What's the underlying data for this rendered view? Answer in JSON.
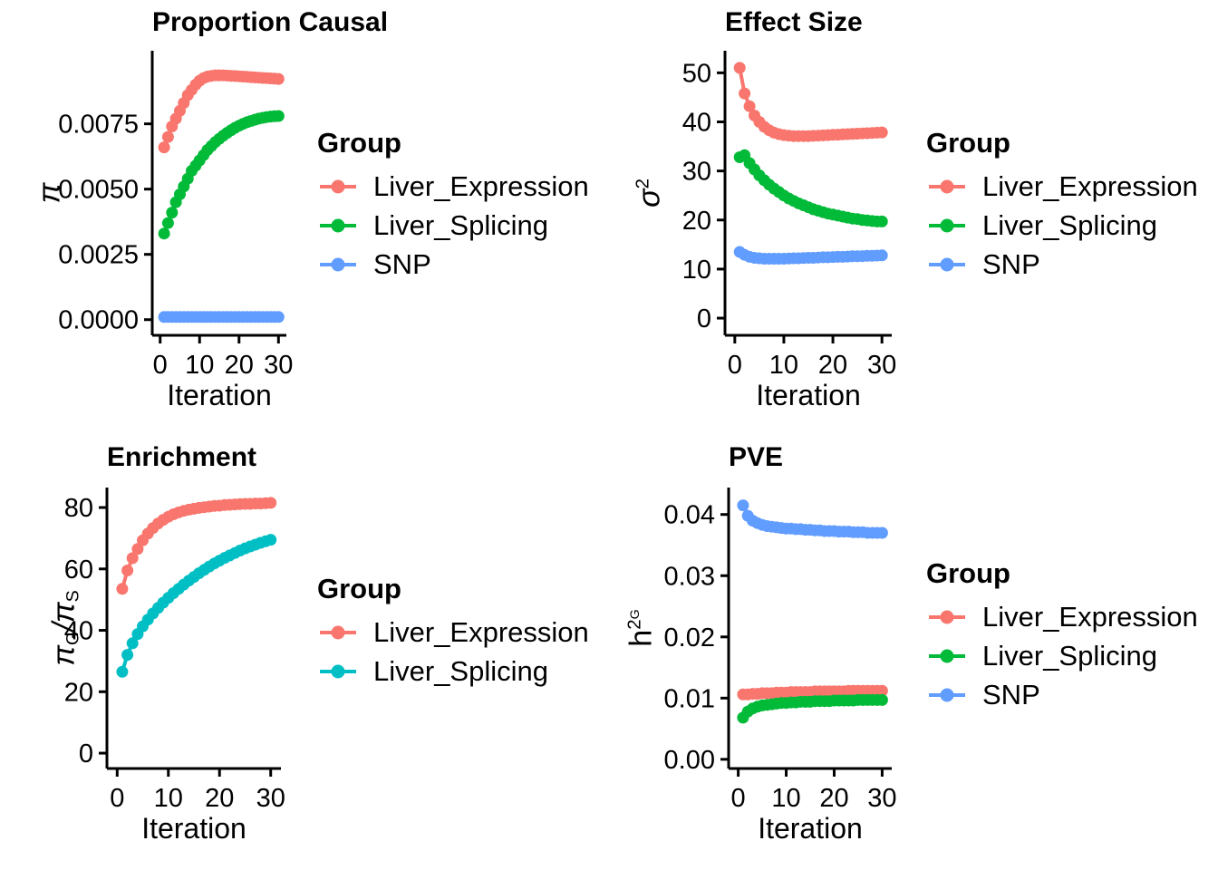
{
  "chart_data": [
    {
      "id": "proportion-causal",
      "type": "line",
      "title": "Proportion Causal",
      "xlabel": "Iteration",
      "ylabel": "π",
      "ylabel_parts": [
        {
          "t": "π",
          "s": "i"
        }
      ],
      "legend_title": "Group",
      "legend_position": "right",
      "xticks": [
        0,
        10,
        20,
        30
      ],
      "ytick_values": [
        0,
        0.0025,
        0.005,
        0.0075
      ],
      "ytick_labels": [
        "0.0000",
        "0.0025",
        "0.0050",
        "0.0075"
      ],
      "xlim": [
        -2,
        32
      ],
      "ylim": [
        -0.0006,
        0.0103
      ],
      "x": [
        1,
        2,
        3,
        4,
        5,
        6,
        7,
        8,
        9,
        10,
        11,
        12,
        13,
        14,
        15,
        16,
        17,
        18,
        19,
        20,
        21,
        22,
        23,
        24,
        25,
        26,
        27,
        28,
        29,
        30
      ],
      "series": [
        {
          "name": "Liver_Expression",
          "color": "#F8766D",
          "values": [
            0.0066,
            0.007,
            0.0074,
            0.0077,
            0.008,
            0.0083,
            0.0086,
            0.0088,
            0.009,
            0.00915,
            0.00925,
            0.00931,
            0.00934,
            0.00936,
            0.00936,
            0.00936,
            0.00935,
            0.00934,
            0.00933,
            0.00932,
            0.00931,
            0.0093,
            0.00929,
            0.00928,
            0.00927,
            0.00926,
            0.00925,
            0.00924,
            0.00923,
            0.00922
          ]
        },
        {
          "name": "Liver_Splicing",
          "color": "#00BA38",
          "values": [
            0.0033,
            0.0037,
            0.0041,
            0.0045,
            0.0048,
            0.0051,
            0.0054,
            0.0057,
            0.0059,
            0.0061,
            0.0063,
            0.0065,
            0.00665,
            0.0068,
            0.00693,
            0.00705,
            0.00716,
            0.00726,
            0.00735,
            0.00743,
            0.0075,
            0.00756,
            0.00761,
            0.00766,
            0.0077,
            0.00773,
            0.00776,
            0.00778,
            0.00779,
            0.0078
          ]
        },
        {
          "name": "SNP",
          "color": "#619CFF",
          "values": [
            0.0001,
            0.0001,
            0.0001,
            0.0001,
            0.0001,
            0.0001,
            0.0001,
            0.0001,
            0.0001,
            0.0001,
            0.0001,
            0.0001,
            0.0001,
            0.0001,
            0.0001,
            0.0001,
            0.0001,
            0.0001,
            0.0001,
            0.0001,
            0.0001,
            0.0001,
            0.0001,
            0.0001,
            0.0001,
            0.0001,
            0.0001,
            0.0001,
            0.0001,
            0.0001
          ]
        }
      ]
    },
    {
      "id": "effect-size",
      "type": "line",
      "title": "Effect Size",
      "xlabel": "Iteration",
      "ylabel": "σ²",
      "ylabel_parts": [
        {
          "t": "σ",
          "s": "i"
        },
        {
          "t": "2",
          "s": "sup"
        }
      ],
      "legend_title": "Group",
      "legend_position": "right",
      "xticks": [
        0,
        10,
        20,
        30
      ],
      "ytick_values": [
        0,
        10,
        20,
        30,
        40,
        50
      ],
      "ytick_labels": [
        "0",
        "10",
        "20",
        "30",
        "40",
        "50"
      ],
      "xlim": [
        -2,
        32
      ],
      "ylim": [
        -3.5,
        54.5
      ],
      "x": [
        1,
        2,
        3,
        4,
        5,
        6,
        7,
        8,
        9,
        10,
        11,
        12,
        13,
        14,
        15,
        16,
        17,
        18,
        19,
        20,
        21,
        22,
        23,
        24,
        25,
        26,
        27,
        28,
        29,
        30
      ],
      "series": [
        {
          "name": "Liver_Expression",
          "color": "#F8766D",
          "values": [
            51,
            45.8,
            43.2,
            41.3,
            40,
            39,
            38.3,
            37.8,
            37.5,
            37.3,
            37.2,
            37.1,
            37.1,
            37.1,
            37.1,
            37.15,
            37.2,
            37.25,
            37.3,
            37.35,
            37.4,
            37.45,
            37.5,
            37.55,
            37.6,
            37.65,
            37.7,
            37.75,
            37.8,
            37.85
          ]
        },
        {
          "name": "Liver_Splicing",
          "color": "#00BA38",
          "values": [
            32.8,
            33.2,
            31.6,
            30.3,
            29.1,
            28.1,
            27.2,
            26.4,
            25.7,
            25,
            24.4,
            23.9,
            23.4,
            23,
            22.6,
            22.2,
            21.9,
            21.6,
            21.3,
            21.1,
            20.9,
            20.7,
            20.5,
            20.3,
            20.2,
            20,
            19.9,
            19.8,
            19.7,
            19.7
          ]
        },
        {
          "name": "SNP",
          "color": "#619CFF",
          "values": [
            13.5,
            12.9,
            12.5,
            12.3,
            12.2,
            12.1,
            12.1,
            12.1,
            12.1,
            12.1,
            12.15,
            12.2,
            12.2,
            12.25,
            12.3,
            12.3,
            12.35,
            12.4,
            12.4,
            12.45,
            12.5,
            12.5,
            12.55,
            12.6,
            12.6,
            12.65,
            12.7,
            12.7,
            12.75,
            12.8
          ]
        }
      ]
    },
    {
      "id": "enrichment",
      "type": "line",
      "title": "Enrichment",
      "xlabel": "Iteration",
      "ylabel": "π_G/π_S",
      "ylabel_parts": [
        {
          "t": "π",
          "s": "i"
        },
        {
          "t": "G",
          "s": "sub"
        },
        {
          "t": "/",
          "s": "i"
        },
        {
          "t": "π",
          "s": "i"
        },
        {
          "t": "S",
          "s": "sub"
        }
      ],
      "legend_title": "Group",
      "legend_position": "right",
      "xticks": [
        0,
        10,
        20,
        30
      ],
      "ytick_values": [
        0,
        20,
        40,
        60,
        80
      ],
      "ytick_labels": [
        "0",
        "20",
        "40",
        "60",
        "80"
      ],
      "xlim": [
        -2,
        32
      ],
      "ylim": [
        -5,
        86.5
      ],
      "x": [
        1,
        2,
        3,
        4,
        5,
        6,
        7,
        8,
        9,
        10,
        11,
        12,
        13,
        14,
        15,
        16,
        17,
        18,
        19,
        20,
        21,
        22,
        23,
        24,
        25,
        26,
        27,
        28,
        29,
        30
      ],
      "series": [
        {
          "name": "Liver_Expression",
          "color": "#F8766D",
          "values": [
            53.5,
            59.5,
            63.5,
            66.5,
            69.3,
            71.5,
            73.3,
            74.8,
            76,
            77,
            77.8,
            78.4,
            78.9,
            79.3,
            79.6,
            79.9,
            80.1,
            80.3,
            80.5,
            80.6,
            80.8,
            80.9,
            81,
            81.1,
            81.2,
            81.2,
            81.3,
            81.3,
            81.4,
            81.5
          ]
        },
        {
          "name": "Liver_Splicing",
          "color": "#00BFC4",
          "values": [
            26.5,
            32,
            35.8,
            38.8,
            41.3,
            43.5,
            45.5,
            47.3,
            49,
            50.6,
            52.1,
            53.5,
            54.9,
            56.2,
            57.4,
            58.6,
            59.7,
            60.8,
            61.8,
            62.7,
            63.6,
            64.4,
            65.2,
            66,
            66.7,
            67.3,
            67.9,
            68.5,
            69,
            69.5
          ]
        }
      ]
    },
    {
      "id": "pve",
      "type": "line",
      "title": "PVE",
      "xlabel": "Iteration",
      "ylabel": "h²G",
      "ylabel_parts": [
        {
          "t": "h"
        },
        {
          "t": "2",
          "s": "sup"
        },
        {
          "t": "G",
          "s": "supsub"
        }
      ],
      "legend_title": "Group",
      "legend_position": "right",
      "xticks": [
        0,
        10,
        20,
        30
      ],
      "ytick_values": [
        0,
        0.01,
        0.02,
        0.03,
        0.04
      ],
      "ytick_labels": [
        "0.00",
        "0.01",
        "0.02",
        "0.03",
        "0.04"
      ],
      "xlim": [
        -2,
        32
      ],
      "ylim": [
        -0.0015,
        0.0444
      ],
      "x": [
        1,
        2,
        3,
        4,
        5,
        6,
        7,
        8,
        9,
        10,
        11,
        12,
        13,
        14,
        15,
        16,
        17,
        18,
        19,
        20,
        21,
        22,
        23,
        24,
        25,
        26,
        27,
        28,
        29,
        30
      ],
      "series": [
        {
          "name": "Liver_Expression",
          "color": "#F8766D",
          "values": [
            0.0106,
            0.0106,
            0.0107,
            0.0107,
            0.0108,
            0.0108,
            0.0108,
            0.0109,
            0.0109,
            0.0109,
            0.011,
            0.011,
            0.011,
            0.011,
            0.011,
            0.0111,
            0.0111,
            0.0111,
            0.0111,
            0.0111,
            0.0111,
            0.0111,
            0.0112,
            0.0112,
            0.0112,
            0.0112,
            0.0112,
            0.0112,
            0.0112,
            0.0112
          ]
        },
        {
          "name": "Liver_Splicing",
          "color": "#00BA38",
          "values": [
            0.0068,
            0.0078,
            0.0083,
            0.0086,
            0.0088,
            0.0089,
            0.009,
            0.0091,
            0.0092,
            0.0092,
            0.0093,
            0.0093,
            0.0094,
            0.0094,
            0.0094,
            0.0095,
            0.0095,
            0.0095,
            0.0095,
            0.0096,
            0.0096,
            0.0096,
            0.0096,
            0.0096,
            0.0097,
            0.0097,
            0.0097,
            0.0097,
            0.0097,
            0.0097
          ]
        },
        {
          "name": "SNP",
          "color": "#619CFF",
          "values": [
            0.0415,
            0.0398,
            0.039,
            0.0386,
            0.0383,
            0.0381,
            0.038,
            0.0379,
            0.0378,
            0.0377,
            0.0377,
            0.0376,
            0.0376,
            0.0375,
            0.0375,
            0.0374,
            0.0374,
            0.0373,
            0.0373,
            0.0373,
            0.0372,
            0.0372,
            0.0372,
            0.0371,
            0.0371,
            0.0371,
            0.037,
            0.037,
            0.037,
            0.037
          ]
        }
      ]
    }
  ]
}
